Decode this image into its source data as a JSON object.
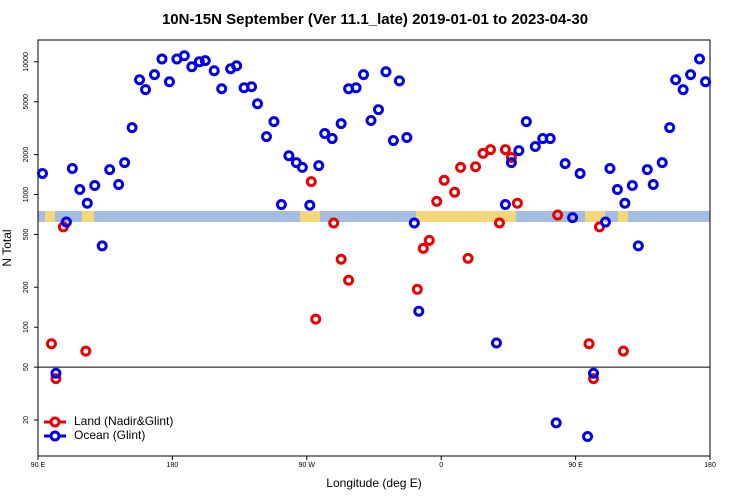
{
  "chart_data": {
    "type": "scatter",
    "title": "10N-15N September (Ver 11.1_late)   2019-01-01 to 2023-04-30",
    "x_label": "Longitude (deg E)",
    "y_label": "N Total",
    "log_y": true,
    "legend": "bottom-left",
    "hline": 50,
    "xlim": [
      90,
      540
    ],
    "xticks": [
      {
        "value": 90,
        "label": "90 E"
      },
      {
        "value": 180,
        "label": "180"
      },
      {
        "value": 270,
        "label": "90 W"
      },
      {
        "value": 360,
        "label": "0"
      },
      {
        "value": 450,
        "label": "90 E"
      },
      {
        "value": 540,
        "label": "180"
      }
    ],
    "ylim": [
      10.7,
      14600
    ],
    "yticks": [
      20,
      50,
      100,
      200,
      500,
      1000,
      2000,
      5000,
      10000
    ],
    "series": [
      {
        "name": "Land (Nadir&Glint)",
        "color": "#ee0000",
        "x": [
          99,
          102,
          107,
          122,
          273,
          276,
          288,
          293,
          298,
          344,
          348,
          352,
          357,
          362,
          369,
          373,
          378,
          383,
          388,
          393,
          399,
          403,
          407,
          411,
          438,
          459,
          462,
          466,
          482
        ],
        "values": [
          75,
          41,
          570,
          66,
          1250,
          115,
          610,
          325,
          226,
          193,
          393,
          451,
          887,
          1280,
          1040,
          1600,
          330,
          1620,
          2040,
          2180,
          610,
          2180,
          1900,
          860,
          700,
          75,
          41,
          570,
          66
        ]
      },
      {
        "name": "Ocean (Glint)",
        "color": "#0000ee",
        "x": [
          93,
          102,
          109,
          113,
          118,
          123,
          128,
          133,
          138,
          144,
          148,
          153,
          158,
          162,
          168,
          173,
          178,
          183,
          188,
          193,
          198,
          202,
          208,
          213,
          219,
          223,
          228,
          233,
          237,
          243,
          248,
          253,
          258,
          263,
          267,
          272,
          278,
          282,
          287,
          293,
          298,
          303,
          308,
          313,
          318,
          323,
          328,
          332,
          337,
          342,
          345,
          397,
          403,
          407,
          412,
          417,
          423,
          428,
          433,
          437,
          443,
          448,
          453,
          458,
          462,
          470,
          473,
          478,
          483,
          488,
          492,
          498,
          502,
          508,
          513,
          517,
          522,
          527,
          533,
          537
        ],
        "values": [
          1440,
          45,
          620,
          1570,
          1090,
          860,
          1170,
          410,
          1540,
          1190,
          1740,
          3190,
          7330,
          6170,
          8000,
          10500,
          7080,
          10500,
          11100,
          9180,
          10000,
          10200,
          8570,
          6270,
          8870,
          9340,
          6380,
          6490,
          4830,
          2730,
          3540,
          840,
          1960,
          1740,
          1600,
          830,
          1650,
          2880,
          2640,
          3420,
          6270,
          6380,
          8000,
          3610,
          4360,
          8410,
          2550,
          7190,
          2690,
          610,
          132,
          76,
          840,
          1740,
          2140,
          3540,
          2300,
          2640,
          2640,
          19,
          1710,
          670,
          1440,
          15,
          45,
          620,
          1570,
          1090,
          860,
          1170,
          410,
          1540,
          1190,
          1740,
          3190,
          7330,
          6170,
          8000,
          10500,
          7080
        ]
      }
    ]
  }
}
